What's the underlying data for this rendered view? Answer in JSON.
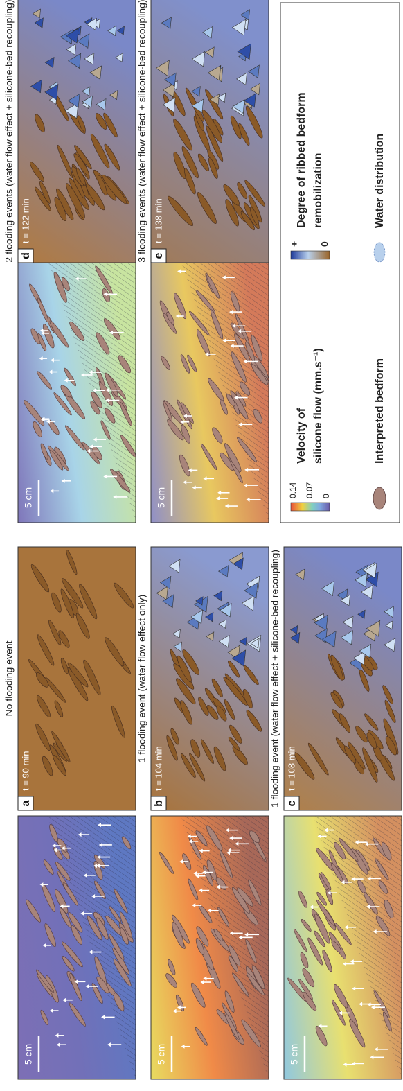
{
  "panels": [
    {
      "header": "No flooding event",
      "label": "a",
      "time": "t = 90 min",
      "scale": "5 cm"
    },
    {
      "header": "1 flooding event (water flow effect only)",
      "label": "b",
      "time": "t = 104 min",
      "scale": "5 cm"
    },
    {
      "header": "1 flooding event (water flow effect + silicone-bed recoupling)",
      "label": "c",
      "time": "t = 108 min",
      "scale": "5 cm"
    },
    {
      "header": "2 flooding events (water flow effect + silicone-bed recoupling)",
      "label": "d",
      "time": "t = 122 min",
      "scale": "5 cm"
    },
    {
      "header": "3 flooding events (water flow effect + silicone-bed recoupling)",
      "label": "e",
      "time": "t = 138 min",
      "scale": "5 cm"
    }
  ],
  "legend": {
    "velocity_title": [
      "Velocity of",
      "silicone flow (mm.s⁻¹)"
    ],
    "velocity_ticks": [
      "0.14",
      "0.07",
      "0"
    ],
    "bedform": "Interpreted bedform",
    "remobilization_title": [
      "Degree of ribbed bedform",
      "remobilization"
    ],
    "remobilization_ticks": [
      "+",
      "0"
    ],
    "water": "Water distribution"
  }
}
